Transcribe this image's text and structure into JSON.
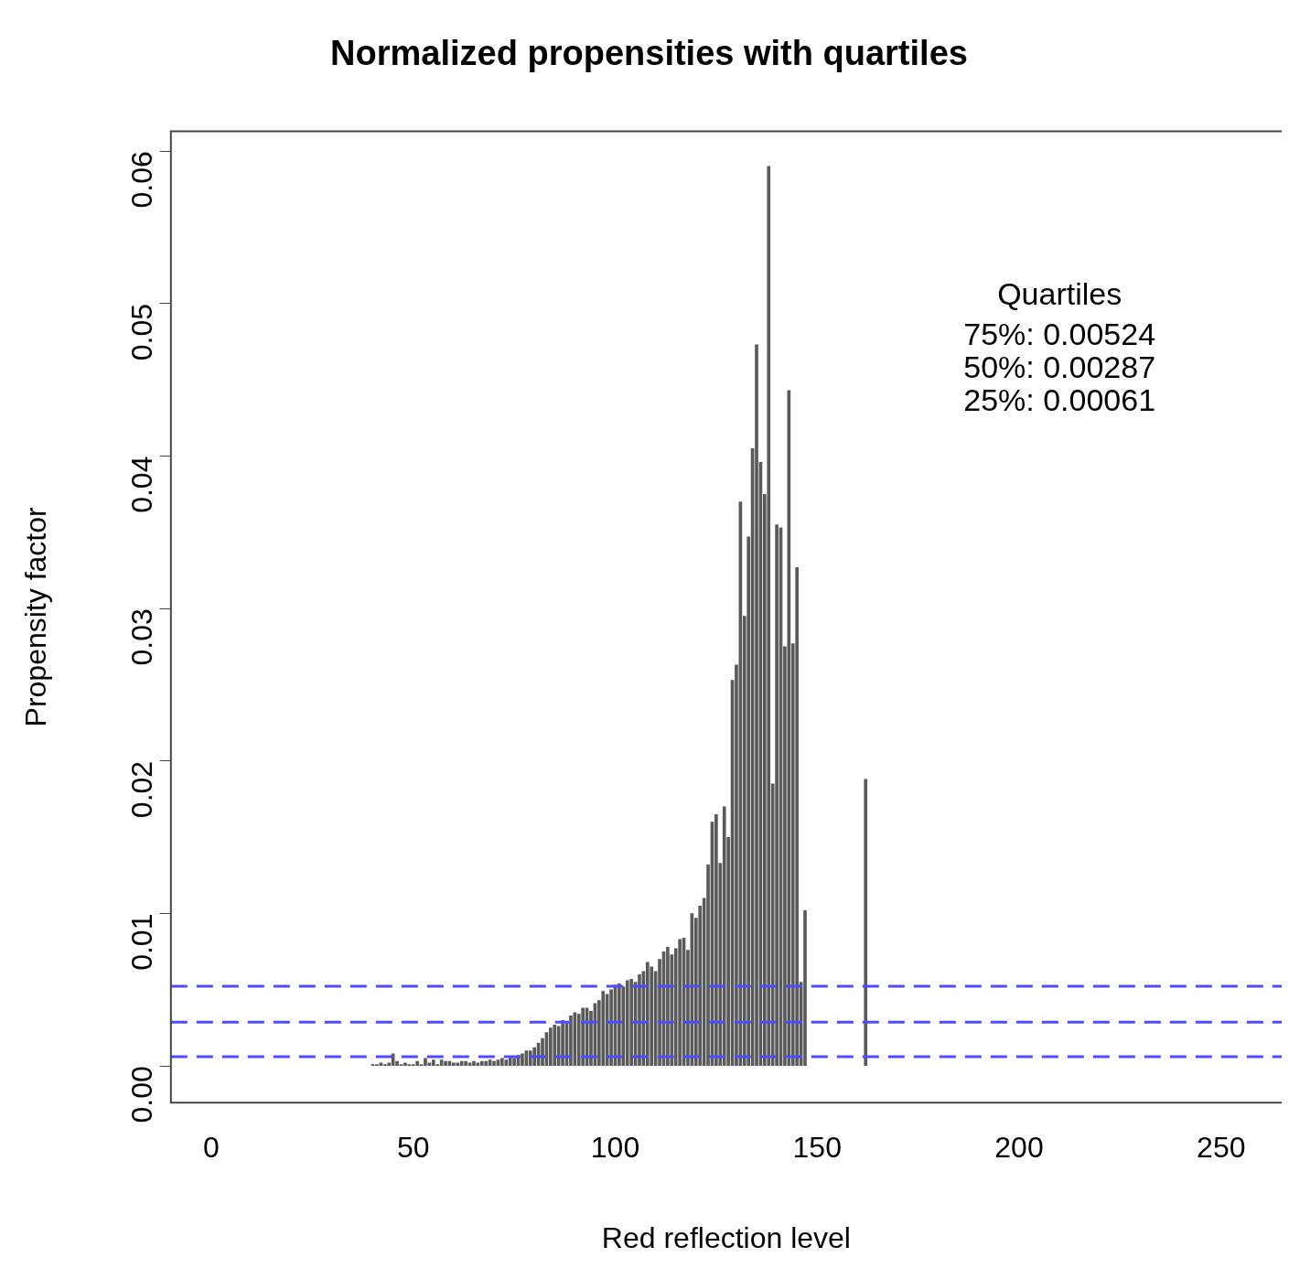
{
  "chart_data": {
    "type": "bar",
    "title": "Normalized propensities with quartiles",
    "xlabel": "Red reflection level",
    "ylabel": "Propensity factor",
    "x": [
      40,
      41,
      42,
      43,
      44,
      45,
      46,
      47,
      48,
      49,
      50,
      51,
      52,
      53,
      54,
      55,
      56,
      57,
      58,
      59,
      60,
      61,
      62,
      63,
      64,
      65,
      66,
      67,
      68,
      69,
      70,
      71,
      72,
      73,
      74,
      75,
      76,
      77,
      78,
      79,
      80,
      81,
      82,
      83,
      84,
      85,
      86,
      87,
      88,
      89,
      90,
      91,
      92,
      93,
      94,
      95,
      96,
      97,
      98,
      99,
      100,
      101,
      102,
      103,
      104,
      105,
      106,
      107,
      108,
      109,
      110,
      111,
      112,
      113,
      114,
      115,
      116,
      117,
      118,
      119,
      120,
      121,
      122,
      123,
      124,
      125,
      126,
      127,
      128,
      129,
      130,
      131,
      132,
      133,
      134,
      135,
      136,
      137,
      138,
      139,
      140,
      141,
      142,
      143,
      144,
      145,
      146,
      147,
      162
    ],
    "values": [
      0.0001,
      0.0001,
      0.0002,
      0.0001,
      0.0002,
      0.0008,
      0.0003,
      0.0001,
      0.0002,
      0.0001,
      0.0001,
      0.0003,
      0.0001,
      0.0005,
      0.0002,
      0.0004,
      0.0001,
      0.0004,
      0.0003,
      0.0003,
      0.0002,
      0.0002,
      0.0003,
      0.0003,
      0.0002,
      0.0003,
      0.0002,
      0.0003,
      0.0003,
      0.0004,
      0.0003,
      0.0004,
      0.0005,
      0.0004,
      0.0006,
      0.0005,
      0.0007,
      0.0008,
      0.001,
      0.001,
      0.0012,
      0.0015,
      0.0018,
      0.0022,
      0.0025,
      0.0027,
      0.0026,
      0.003,
      0.0028,
      0.0033,
      0.0035,
      0.0034,
      0.0038,
      0.0038,
      0.0036,
      0.0041,
      0.0043,
      0.0049,
      0.0047,
      0.005,
      0.0053,
      0.0054,
      0.0052,
      0.0056,
      0.0057,
      0.0055,
      0.006,
      0.0062,
      0.0068,
      0.0065,
      0.0062,
      0.007,
      0.0075,
      0.0078,
      0.0073,
      0.0077,
      0.0083,
      0.0084,
      0.0076,
      0.01,
      0.0097,
      0.0105,
      0.011,
      0.0132,
      0.016,
      0.0165,
      0.0133,
      0.017,
      0.015,
      0.0253,
      0.0263,
      0.037,
      0.0295,
      0.0347,
      0.0405,
      0.0473,
      0.0396,
      0.0375,
      0.059,
      0.0185,
      0.0355,
      0.0353,
      0.0275,
      0.0443,
      0.0277,
      0.0327,
      0.0055,
      0.0102,
      0.0188
    ],
    "color": "#5a5a5a",
    "xlim": [
      -10,
      265
    ],
    "xticks": [
      0,
      50,
      100,
      150,
      200,
      250
    ],
    "ylim": [
      -0.0024,
      0.0613
    ],
    "yticks": [
      {
        "value": 0,
        "label": "0.00"
      },
      {
        "value": 0.01,
        "label": "0.01"
      },
      {
        "value": 0.02,
        "label": "0.02"
      },
      {
        "value": 0.03,
        "label": "0.03"
      },
      {
        "value": 0.04,
        "label": "0.04"
      },
      {
        "value": 0.05,
        "label": "0.05"
      },
      {
        "value": 0.06,
        "label": "0.06"
      }
    ],
    "ref_lines": [
      {
        "axis": "y",
        "value": 0.00524,
        "color": "#4d4dff",
        "line_style": "dashed"
      },
      {
        "axis": "y",
        "value": 0.00287,
        "color": "#4d4dff",
        "line_style": "dashed"
      },
      {
        "axis": "y",
        "value": 0.00061,
        "color": "#4d4dff",
        "line_style": "dashed"
      }
    ],
    "annotations": [
      "Quartiles",
      "75%: 0.00524",
      "50%: 0.00287",
      "25%: 0.00061"
    ],
    "grid": false,
    "legend": false
  }
}
